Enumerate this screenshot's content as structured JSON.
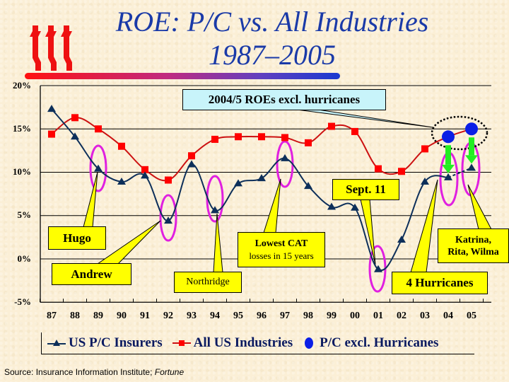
{
  "slide": {
    "title_line1": "ROE: P/C vs. All Industries",
    "title_line2": "1987–2005",
    "logo": "iii-logo",
    "source_label": "Source:  Insurance Information Institute; ",
    "source_italic": "Fortune"
  },
  "colors": {
    "pc_insurers": "#0d2f5a",
    "all_industries": "#cc1111",
    "all_industries_marker": "#ff0000",
    "pc_excl_hurricanes": "#0a1ee6",
    "ellipse": "#e020e0",
    "callout": "#ffff00",
    "callout_cyan": "#c8f4fa",
    "arrow": "#22ee22",
    "title": "#1a3aa8"
  },
  "chart_data": {
    "type": "line",
    "title": "ROE: P/C vs. All Industries 1987–2005",
    "xlabel": "",
    "ylabel": "",
    "categories": [
      "87",
      "88",
      "89",
      "90",
      "91",
      "92",
      "93",
      "94",
      "95",
      "96",
      "97",
      "98",
      "99",
      "00",
      "01",
      "02",
      "03",
      "04",
      "05"
    ],
    "yticks": [
      "20%",
      "15%",
      "10%",
      "5%",
      "0%",
      "-5%"
    ],
    "ylim": [
      -5,
      20
    ],
    "grid": true,
    "legend_position": "bottom",
    "series": [
      {
        "name": "US P/C Insurers",
        "marker": "triangle",
        "values": [
          17.3,
          14.1,
          10.4,
          8.9,
          9.6,
          4.4,
          10.9,
          5.6,
          8.7,
          9.3,
          11.6,
          8.4,
          6.0,
          5.9,
          -1.2,
          2.2,
          8.9,
          9.4,
          10.5
        ]
      },
      {
        "name": "All US Industries",
        "marker": "square",
        "values": [
          14.4,
          16.3,
          15.0,
          13.0,
          10.3,
          9.1,
          11.9,
          13.8,
          14.1,
          14.1,
          14.0,
          13.4,
          15.3,
          14.7,
          10.4,
          10.1,
          12.7,
          14.1,
          15.0
        ]
      },
      {
        "name": "P/C excl. Hurricanes",
        "marker": "circle",
        "values": [
          null,
          null,
          null,
          null,
          null,
          null,
          null,
          null,
          null,
          null,
          null,
          null,
          null,
          null,
          null,
          null,
          null,
          14.1,
          15.0
        ]
      }
    ],
    "annotations": [
      {
        "text": "2004/5 ROEs excl. hurricanes",
        "points_to": [
          "04",
          "05"
        ]
      },
      {
        "text": "Hugo",
        "points_to": "89"
      },
      {
        "text": "Andrew",
        "points_to": "92"
      },
      {
        "text": "Northridge",
        "points_to": "94"
      },
      {
        "text": "Lowest CAT losses in 15 years",
        "points_to": "97"
      },
      {
        "text": "Sept. 11",
        "points_to": "01"
      },
      {
        "text": "4 Hurricanes",
        "points_to": "04"
      },
      {
        "text": "Katrina, Rita, Wilma",
        "points_to": "05"
      }
    ]
  },
  "callouts": {
    "excl": "2004/5 ROEs excl. hurricanes",
    "hugo": "Hugo",
    "andrew": "Andrew",
    "northridge": "Northridge",
    "lowest_cat_1": "Lowest CAT",
    "lowest_cat_2": "losses in 15 years",
    "sept11": "Sept. 11",
    "four_hurricanes": "4 Hurricanes",
    "katrina_1": "Katrina,",
    "katrina_2": "Rita, Wilma"
  },
  "legend": {
    "items": [
      {
        "label": "US P/C Insurers",
        "icon": "triangle-line-icon"
      },
      {
        "label": "All US Industries",
        "icon": "square-line-icon"
      },
      {
        "label": "P/C excl. Hurricanes",
        "icon": "circle-icon"
      }
    ]
  }
}
